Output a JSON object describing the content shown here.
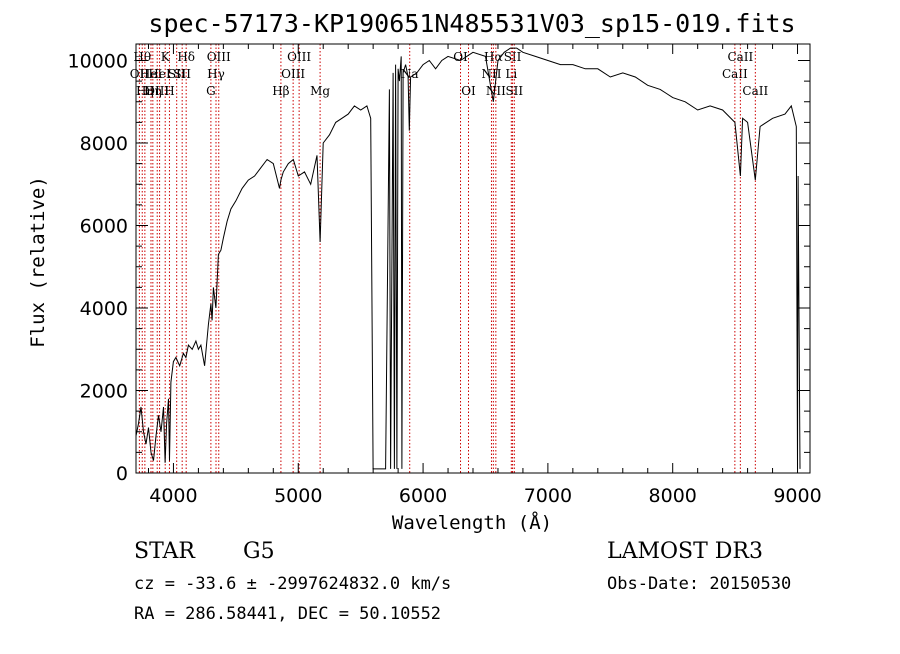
{
  "page": {
    "title": "spec-57173-KP190651N485531V03_sp15-019.fits",
    "class_label": "STAR",
    "subclass_label": "G5",
    "survey_label": "LAMOST DR3",
    "cz_line": "cz = -33.6 ± -2997624832.0 km/s",
    "obs_date_line": "Obs-Date: 20150530",
    "radec_line": "RA = 286.58441, DEC =  50.10552"
  },
  "chart_data": {
    "type": "line",
    "title": "spec-57173-KP190651N485531V03_sp15-019.fits",
    "xlabel": "Wavelength (Å)",
    "ylabel": "Flux (relative)",
    "xlim": [
      3700,
      9100
    ],
    "ylim": [
      0,
      10400
    ],
    "xticks": [
      4000,
      5000,
      6000,
      7000,
      8000,
      9000
    ],
    "yticks": [
      0,
      2000,
      4000,
      6000,
      8000,
      10000
    ],
    "minor_xtick_step": 200,
    "minor_ytick_step": 500,
    "grid": false,
    "colors": {
      "spectrum": "#000000",
      "line_markers": "#cc0000",
      "axes": "#000000"
    },
    "series": [
      {
        "x": [
          3700,
          3720,
          3740,
          3760,
          3780,
          3800,
          3820,
          3840,
          3860,
          3880,
          3900,
          3920,
          3933,
          3945,
          3960,
          3968,
          3980,
          4000,
          4020,
          4050,
          4080,
          4100,
          4120,
          4150,
          4180,
          4200,
          4220,
          4250,
          4280,
          4300,
          4310,
          4320,
          4340,
          4360,
          4380,
          4400,
          4430,
          4460,
          4500,
          4550,
          4600,
          4650,
          4700,
          4750,
          4800,
          4850,
          4861,
          4880,
          4920,
          4960,
          5000,
          5050,
          5100,
          5150,
          5175,
          5200,
          5250,
          5300,
          5350,
          5400,
          5450,
          5500,
          5550,
          5580,
          5600,
          5605,
          5640,
          5700,
          5730,
          5740,
          5760,
          5770,
          5780,
          5790,
          5800,
          5810,
          5825,
          5830,
          5840,
          5860,
          5880,
          5890,
          5900,
          5950,
          6000,
          6050,
          6100,
          6150,
          6200,
          6300,
          6400,
          6500,
          6563,
          6600,
          6650,
          6700,
          6750,
          6800,
          6900,
          7000,
          7100,
          7200,
          7300,
          7400,
          7500,
          7600,
          7700,
          7800,
          7900,
          7950,
          8000,
          8100,
          8200,
          8300,
          8400,
          8498,
          8542,
          8560,
          8600,
          8662,
          8700,
          8800,
          8900,
          8950,
          8990,
          9000,
          9005,
          9020
        ],
        "y": [
          900,
          1200,
          1600,
          1000,
          700,
          1100,
          500,
          300,
          900,
          1400,
          1000,
          1600,
          250,
          1200,
          1800,
          300,
          2200,
          2700,
          2800,
          2600,
          2900,
          2800,
          3100,
          3000,
          3200,
          3000,
          3100,
          2600,
          3600,
          4100,
          3700,
          4500,
          4000,
          5300,
          5400,
          5700,
          6100,
          6400,
          6600,
          6900,
          7100,
          7200,
          7400,
          7600,
          7500,
          6900,
          7100,
          7300,
          7500,
          7600,
          7200,
          7300,
          7000,
          7700,
          5600,
          8000,
          8200,
          8500,
          8600,
          8700,
          8900,
          8800,
          8900,
          8600,
          100,
          100,
          100,
          100,
          9300,
          100,
          9700,
          100,
          9900,
          100,
          9800,
          9500,
          10100,
          100,
          9700,
          9900,
          9600,
          8300,
          9600,
          9700,
          9900,
          10000,
          9800,
          10000,
          10100,
          10000,
          10200,
          10100,
          9000,
          10000,
          10200,
          10300,
          10300,
          10200,
          10100,
          10000,
          9900,
          9900,
          9800,
          9800,
          9600,
          9700,
          9600,
          9400,
          9300,
          9200,
          9100,
          9000,
          8800,
          8900,
          8800,
          8500,
          7200,
          8600,
          8500,
          7100,
          8400,
          8600,
          8700,
          8900,
          8400,
          100,
          7200,
          100
        ]
      }
    ],
    "line_markers": [
      {
        "x": 3727,
        "label": "OII",
        "row": 2
      },
      {
        "x": 3750,
        "label": "Hθ",
        "row": 1
      },
      {
        "x": 3771,
        "label": "Hη",
        "row": 3
      },
      {
        "x": 3820,
        "label": "HeI",
        "row": 2
      },
      {
        "x": 3835,
        "label": "Hη",
        "row": 3
      },
      {
        "x": 3870,
        "label": "OIII",
        "row": 3
      },
      {
        "x": 3889,
        "label": "HeI",
        "row": 2
      },
      {
        "x": 3934,
        "label": "K",
        "row": 1
      },
      {
        "x": 3968,
        "label": "H",
        "row": 3
      },
      {
        "x": 4026,
        "label": "SII",
        "row": 2
      },
      {
        "x": 4070,
        "label": "SII",
        "row": 2
      },
      {
        "x": 4102,
        "label": "Hδ",
        "row": 1
      },
      {
        "x": 4300,
        "label": "G",
        "row": 3
      },
      {
        "x": 4341,
        "label": "Hγ",
        "row": 2
      },
      {
        "x": 4363,
        "label": "OIII",
        "row": 1
      },
      {
        "x": 4861,
        "label": "Hβ",
        "row": 3
      },
      {
        "x": 4959,
        "label": "OIII",
        "row": 2
      },
      {
        "x": 5007,
        "label": "OIII",
        "row": 1
      },
      {
        "x": 5175,
        "label": "Mg",
        "row": 3
      },
      {
        "x": 5893,
        "label": "Na",
        "row": 2
      },
      {
        "x": 6300,
        "label": "OI",
        "row": 1
      },
      {
        "x": 6364,
        "label": "OI",
        "row": 3
      },
      {
        "x": 6548,
        "label": "NII",
        "row": 2
      },
      {
        "x": 6563,
        "label": "Hα",
        "row": 1
      },
      {
        "x": 6583,
        "label": "NII",
        "row": 3
      },
      {
        "x": 6707,
        "label": "Li",
        "row": 2
      },
      {
        "x": 6717,
        "label": "SII",
        "row": 1
      },
      {
        "x": 6731,
        "label": "SII",
        "row": 3
      },
      {
        "x": 8498,
        "label": "CaII",
        "row": 2
      },
      {
        "x": 8542,
        "label": "CaII",
        "row": 1
      },
      {
        "x": 8662,
        "label": "CaII",
        "row": 3
      }
    ]
  }
}
